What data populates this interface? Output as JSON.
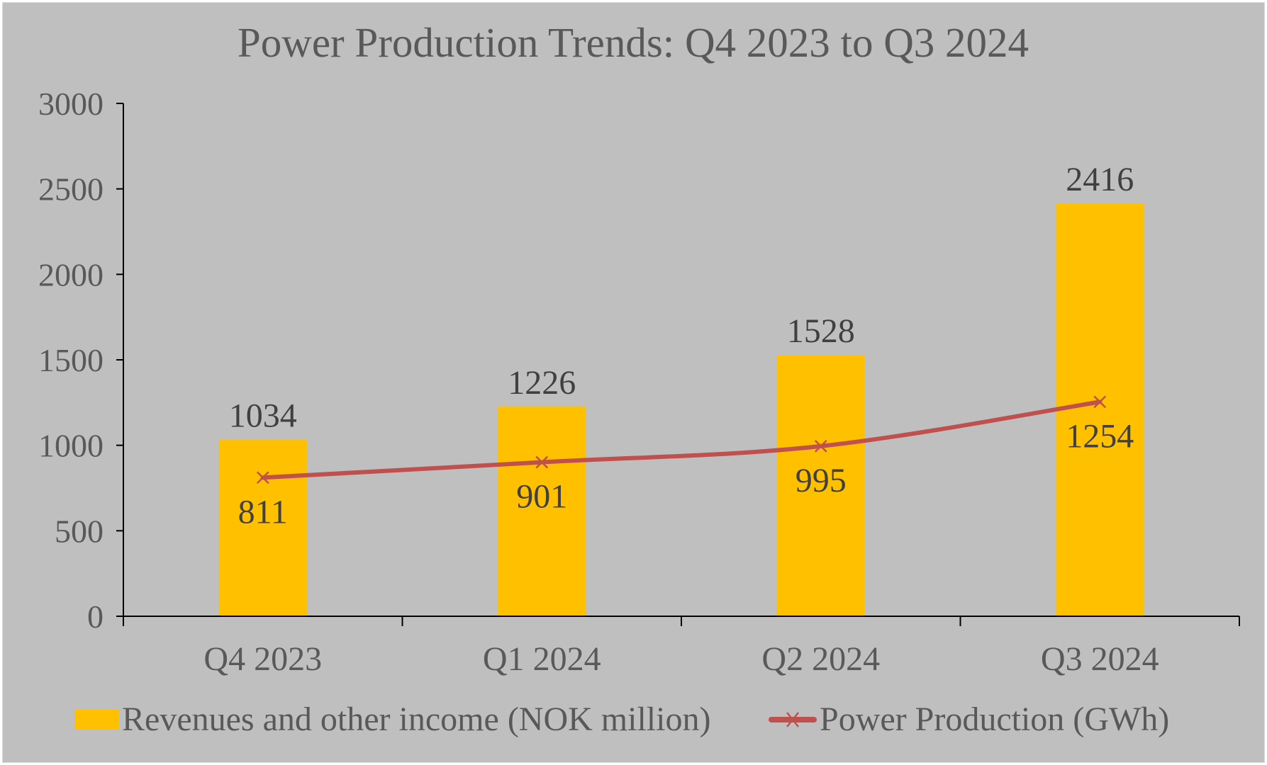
{
  "chart_data": {
    "type": "bar+line",
    "title": "Power Production Trends: Q4 2023 to Q3 2024",
    "categories": [
      "Q4 2023",
      "Q1 2024",
      "Q2 2024",
      "Q3 2024"
    ],
    "series": [
      {
        "name": "Revenues and other income (NOK million)",
        "type": "bar",
        "values": [
          1034,
          1226,
          1528,
          2416
        ],
        "color": "#FFC000"
      },
      {
        "name": "Power Production (GWh)",
        "type": "line",
        "marker": "x",
        "values": [
          811,
          901,
          995,
          1254
        ],
        "color": "#C0504D"
      }
    ],
    "ylim": [
      0,
      3000
    ],
    "yticks": [
      0,
      500,
      1000,
      1500,
      2000,
      2500,
      3000
    ],
    "grid": false,
    "legend_position": "bottom",
    "background": "#BFBFBF",
    "text_color": "#595959",
    "label_color": "#404040"
  }
}
